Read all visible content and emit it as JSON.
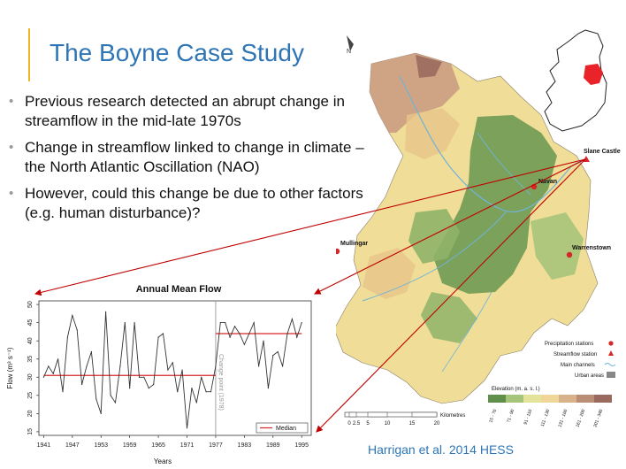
{
  "slide": {
    "title": "The Boyne Case Study",
    "bullets": [
      "Previous research detected an abrupt change in streamflow in the mid-late 1970s",
      "Change in streamflow linked to change in climate – the North Atlantic Oscillation (NAO)",
      "However, could this change be due to other factors (e.g. human disturbance)?"
    ],
    "citation": "Harrigan et al. 2014 HESS"
  },
  "map": {
    "north_label": "N",
    "places": [
      "Slane Castle",
      "Navan",
      "Mullingar",
      "Warrenstown"
    ],
    "legend": {
      "precip": "Precipitation stations",
      "stream": "Streamflow station",
      "channels": "Main channels",
      "urban": "Urban areas",
      "elevation_title": "Elevation (m. a. s. l.)",
      "elevation_classes": [
        "15 - 70",
        "71 - 90",
        "91 - 110",
        "111 - 130",
        "131 - 160",
        "161 - 200",
        "201 - 340"
      ],
      "elevation_colors": [
        "#5f8f4a",
        "#a6c47a",
        "#e4e39a",
        "#f1d699",
        "#d7b28a",
        "#b98e74",
        "#9a6a5f"
      ]
    },
    "scale": {
      "ticks": [
        "0",
        "2.5",
        "5",
        "10",
        "15",
        "20"
      ],
      "unit": "Kilometres"
    }
  },
  "chart_data": {
    "type": "line",
    "title": "Annual Mean Flow",
    "xlabel": "Years",
    "ylabel": "Flow (m³ s⁻¹)",
    "xlim": [
      1940,
      1997
    ],
    "ylim": [
      14,
      51
    ],
    "x_ticks": [
      1941,
      1947,
      1953,
      1959,
      1965,
      1971,
      1977,
      1983,
      1989,
      1995
    ],
    "y_ticks": [
      15,
      20,
      25,
      30,
      35,
      40,
      45,
      50
    ],
    "x": [
      1941,
      1942,
      1943,
      1944,
      1945,
      1946,
      1947,
      1948,
      1949,
      1950,
      1951,
      1952,
      1953,
      1954,
      1955,
      1956,
      1957,
      1958,
      1959,
      1960,
      1961,
      1962,
      1963,
      1964,
      1965,
      1966,
      1967,
      1968,
      1969,
      1970,
      1971,
      1972,
      1973,
      1974,
      1975,
      1976,
      1977,
      1978,
      1979,
      1980,
      1981,
      1982,
      1983,
      1984,
      1985,
      1986,
      1987,
      1988,
      1989,
      1990,
      1991,
      1992,
      1993,
      1994,
      1995
    ],
    "y": [
      30,
      33,
      31,
      35,
      26,
      41,
      47,
      43,
      28,
      33,
      37,
      24,
      20,
      48,
      25,
      23,
      33,
      45,
      27,
      45,
      30,
      30,
      27,
      28,
      41,
      42,
      32,
      34,
      26,
      32,
      16,
      27,
      23,
      30,
      26,
      26,
      33,
      45,
      45,
      41,
      44,
      42,
      39,
      42,
      45,
      33,
      40,
      27,
      36,
      37,
      33,
      42,
      46,
      41,
      45
    ],
    "median_segments": [
      {
        "x": [
          1941,
          1977
        ],
        "y": 30.5
      },
      {
        "x": [
          1977,
          1995
        ],
        "y": 42
      }
    ],
    "change_point_year": 1977,
    "change_point_label": "Change point (1978)",
    "legend": {
      "label": "Median",
      "position": "bottom-right"
    },
    "colors": {
      "line": "#333333",
      "median": "#d62728",
      "change_point": "#999999"
    }
  }
}
